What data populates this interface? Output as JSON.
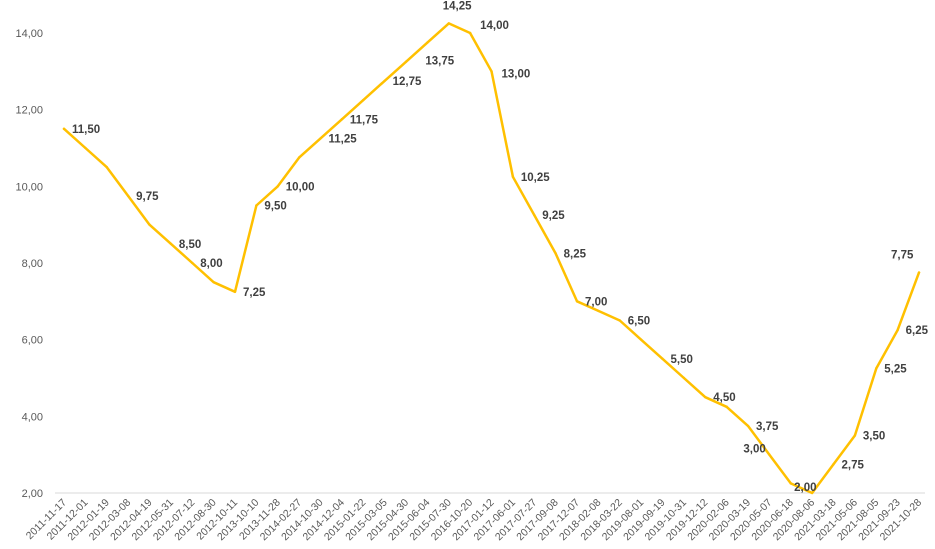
{
  "chart_data": {
    "type": "line",
    "title": "",
    "xlabel": "",
    "ylabel": "",
    "ylim": [
      2,
      14
    ],
    "yticks": [
      "2,00",
      "4,00",
      "6,00",
      "8,00",
      "10,00",
      "12,00",
      "14,00"
    ],
    "grid": false,
    "legend": "none",
    "line_color": "#FFC000",
    "x": [
      "2011-11-17",
      "2011-12-01",
      "2012-01-19",
      "2012-03-08",
      "2012-04-19",
      "2012-05-31",
      "2012-07-12",
      "2012-08-30",
      "2012-10-11",
      "2013-10-10",
      "2013-11-28",
      "2014-02-27",
      "2014-10-30",
      "2014-12-04",
      "2015-01-22",
      "2015-03-05",
      "2015-04-30",
      "2015-06-04",
      "2015-07-30",
      "2016-10-20",
      "2017-01-12",
      "2017-06-01",
      "2017-07-27",
      "2017-09-08",
      "2017-12-07",
      "2018-02-08",
      "2018-03-22",
      "2019-08-01",
      "2019-09-19",
      "2019-10-31",
      "2019-12-12",
      "2020-02-06",
      "2020-03-19",
      "2020-05-07",
      "2020-06-18",
      "2020-08-06",
      "2021-03-18",
      "2021-05-06",
      "2021-08-05",
      "2021-09-23",
      "2021-10-28"
    ],
    "series": [
      {
        "values": [
          11.5,
          11.0,
          10.5,
          9.75,
          9.0,
          8.5,
          8.0,
          7.5,
          7.25,
          9.5,
          10.0,
          10.75,
          11.25,
          11.75,
          12.25,
          12.75,
          13.25,
          13.75,
          14.25,
          14.0,
          13.0,
          10.25,
          9.25,
          8.25,
          7.0,
          6.75,
          6.5,
          6.0,
          5.5,
          5.0,
          4.5,
          4.25,
          3.75,
          3.0,
          2.25,
          2.0,
          2.75,
          3.5,
          5.25,
          6.25,
          7.75
        ]
      }
    ],
    "data_labels": [
      {
        "index": 0,
        "text": "11,50"
      },
      {
        "index": 3,
        "text": "9,75"
      },
      {
        "index": 5,
        "text": "8,50"
      },
      {
        "index": 6,
        "text": "8,00"
      },
      {
        "index": 8,
        "text": "7,25"
      },
      {
        "index": 9,
        "text": "9,50"
      },
      {
        "index": 10,
        "text": "10,00"
      },
      {
        "index": 12,
        "text": "11,25"
      },
      {
        "index": 13,
        "text": "11,75"
      },
      {
        "index": 15,
        "text": "12,75"
      },
      {
        "index": 17,
        "text": "13,75"
      },
      {
        "index": 18,
        "text": "14,25"
      },
      {
        "index": 19,
        "text": "14,00"
      },
      {
        "index": 20,
        "text": "13,00"
      },
      {
        "index": 21,
        "text": "10,25"
      },
      {
        "index": 22,
        "text": "9,25"
      },
      {
        "index": 23,
        "text": "8,25"
      },
      {
        "index": 24,
        "text": "7,00"
      },
      {
        "index": 26,
        "text": "6,50"
      },
      {
        "index": 28,
        "text": "5,50"
      },
      {
        "index": 30,
        "text": "4,50"
      },
      {
        "index": 32,
        "text": "3,75"
      },
      {
        "index": 33,
        "text": "3,00"
      },
      {
        "index": 35,
        "text": "2,00"
      },
      {
        "index": 36,
        "text": "2,75"
      },
      {
        "index": 37,
        "text": "3,50"
      },
      {
        "index": 38,
        "text": "5,25"
      },
      {
        "index": 39,
        "text": "6,25"
      },
      {
        "index": 40,
        "text": "7,75"
      }
    ]
  }
}
